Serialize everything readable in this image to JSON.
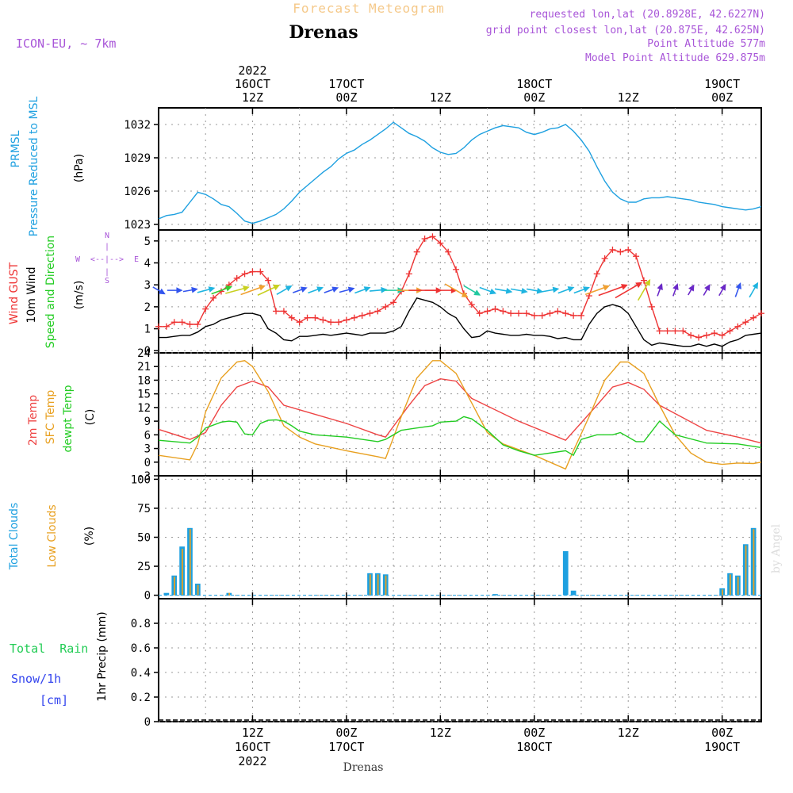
{
  "header": {
    "product_title": "Forecast Meteogram",
    "location": "Drenas",
    "model": "ICON-EU, ~ 7km",
    "requested": "requested lon,lat (20.8928E, 42.6227N)",
    "grid_point": "grid point closest lon,lat (20.875E, 42.625N)",
    "point_altitude": "Point Altitude 577m",
    "model_altitude": "Model Point Altitude 629.875m",
    "footer_location": "Drenas",
    "watermark": "by Angel"
  },
  "time_axis": {
    "start_hour": 0,
    "end_hour": 77,
    "unit": "hours from 16OCT 00Z 2022",
    "top_ticks": [
      {
        "hour": 12,
        "lines": [
          "2022",
          "16OCT",
          "12Z"
        ]
      },
      {
        "hour": 24,
        "lines": [
          "17OCT",
          "00Z"
        ]
      },
      {
        "hour": 36,
        "lines": [
          "12Z"
        ]
      },
      {
        "hour": 48,
        "lines": [
          "18OCT",
          "00Z"
        ]
      },
      {
        "hour": 60,
        "lines": [
          "12Z"
        ]
      },
      {
        "hour": 72,
        "lines": [
          "19OCT",
          "00Z"
        ]
      }
    ],
    "bottom_ticks": [
      {
        "hour": 12,
        "lines": [
          "12Z",
          "16OCT",
          "2022"
        ]
      },
      {
        "hour": 24,
        "lines": [
          "00Z",
          "17OCT"
        ]
      },
      {
        "hour": 36,
        "lines": [
          "12Z"
        ]
      },
      {
        "hour": 48,
        "lines": [
          "00Z",
          "18OCT"
        ]
      },
      {
        "hour": 60,
        "lines": [
          "12Z"
        ]
      },
      {
        "hour": 72,
        "lines": [
          "00Z",
          "19OCT"
        ]
      }
    ]
  },
  "colors": {
    "pressure": "#1ea0e0",
    "gust": "#ee3333",
    "wind": "#000000",
    "temp2m": "#ee4444",
    "sfc": "#e8a020",
    "dewpt": "#22cc22",
    "total_clouds": "#1ea0e0",
    "low_clouds": "#e8a020",
    "rain": "#22cc55",
    "snow": "#3344ee",
    "meta": "#a855d8",
    "title": "#f5c98a"
  },
  "panel_labels": {
    "pressure": {
      "l1": "PRMSL",
      "l2": "Pressure Reduced to MSL",
      "unit": "(hPa)"
    },
    "wind": {
      "l1": "Wind GUST",
      "l2": "10m Wind",
      "l3": "Speed and Direction",
      "unit": "(m/s)",
      "compass": {
        "n": "N",
        "s": "S",
        "w": "W",
        "e": "E",
        "ns_sym": "|",
        "ew_sym": "<--|-->"
      }
    },
    "temp": {
      "l1": "2m Temp",
      "l2": "SFC Temp",
      "l3": "dewpt Temp",
      "unit": "(C)"
    },
    "clouds": {
      "l1": "Total Clouds",
      "l2": "Low Clouds",
      "unit": "(%)"
    },
    "precip": {
      "rain": "Total  Rain",
      "snow": "Snow/1h",
      "snow_unit": "[cm]",
      "unit": "1hr Precip (mm)"
    }
  },
  "chart_data": [
    {
      "type": "line",
      "id": "pressure",
      "title": "PRMSL Pressure Reduced to MSL",
      "ylabel": "(hPa)",
      "ylim": [
        1022.5,
        1033.5
      ],
      "yticks": [
        1023,
        1026,
        1029,
        1032
      ],
      "series": [
        {
          "name": "PRMSL",
          "x": [
            0,
            1,
            2,
            3,
            4,
            5,
            6,
            7,
            8,
            9,
            10,
            11,
            12,
            13,
            14,
            15,
            16,
            17,
            18,
            19,
            20,
            21,
            22,
            23,
            24,
            25,
            26,
            27,
            28,
            29,
            30,
            31,
            32,
            33,
            34,
            35,
            36,
            37,
            38,
            39,
            40,
            41,
            42,
            43,
            44,
            45,
            46,
            47,
            48,
            49,
            50,
            51,
            52,
            53,
            54,
            55,
            56,
            57,
            58,
            59,
            60,
            61,
            62,
            63,
            64,
            65,
            66,
            67,
            68,
            69,
            70,
            71,
            72,
            73,
            74,
            75,
            76,
            77
          ],
          "values": [
            1023.5,
            1023.8,
            1023.9,
            1024.1,
            1025.0,
            1025.9,
            1025.7,
            1025.3,
            1024.8,
            1024.6,
            1024.0,
            1023.3,
            1023.1,
            1023.3,
            1023.6,
            1023.9,
            1024.4,
            1025.1,
            1025.9,
            1026.5,
            1027.1,
            1027.7,
            1028.2,
            1028.9,
            1029.4,
            1029.7,
            1030.2,
            1030.6,
            1031.1,
            1031.6,
            1032.2,
            1031.7,
            1031.2,
            1030.9,
            1030.5,
            1029.9,
            1029.5,
            1029.3,
            1029.4,
            1029.9,
            1030.6,
            1031.1,
            1031.4,
            1031.7,
            1031.9,
            1031.8,
            1031.7,
            1031.3,
            1031.1,
            1031.3,
            1031.6,
            1031.7,
            1032.0,
            1031.4,
            1030.6,
            1029.6,
            1028.2,
            1026.9,
            1025.9,
            1025.3,
            1025.0,
            1025.0,
            1025.3,
            1025.4,
            1025.4,
            1025.5,
            1025.4,
            1025.3,
            1025.2,
            1025.0,
            1024.9,
            1024.8,
            1024.6,
            1024.5,
            1024.4,
            1024.3,
            1024.4,
            1024.6
          ]
        }
      ]
    },
    {
      "type": "line",
      "id": "wind",
      "title": "Wind GUST / 10m Wind Speed and Direction",
      "ylabel": "(m/s)",
      "ylim": [
        -0.1,
        5.5
      ],
      "yticks": [
        0,
        1,
        2,
        3,
        4,
        5
      ],
      "series": [
        {
          "name": "Wind GUST",
          "x": [
            0,
            1,
            2,
            3,
            4,
            5,
            6,
            7,
            8,
            9,
            10,
            11,
            12,
            13,
            14,
            15,
            16,
            17,
            18,
            19,
            20,
            21,
            22,
            23,
            24,
            25,
            26,
            27,
            28,
            29,
            30,
            31,
            32,
            33,
            34,
            35,
            36,
            37,
            38,
            39,
            40,
            41,
            42,
            43,
            44,
            45,
            46,
            47,
            48,
            49,
            50,
            51,
            52,
            53,
            54,
            55,
            56,
            57,
            58,
            59,
            60,
            61,
            62,
            63,
            64,
            65,
            66,
            67,
            68,
            69,
            70,
            71,
            72,
            73,
            74,
            75,
            76,
            77
          ],
          "values": [
            1.1,
            1.1,
            1.3,
            1.3,
            1.2,
            1.2,
            1.9,
            2.4,
            2.7,
            3.0,
            3.3,
            3.5,
            3.6,
            3.6,
            3.2,
            1.8,
            1.8,
            1.5,
            1.3,
            1.5,
            1.5,
            1.4,
            1.3,
            1.3,
            1.4,
            1.5,
            1.6,
            1.7,
            1.8,
            2.0,
            2.2,
            2.7,
            3.5,
            4.5,
            5.1,
            5.2,
            4.9,
            4.5,
            3.7,
            2.6,
            2.1,
            1.7,
            1.8,
            1.9,
            1.8,
            1.7,
            1.7,
            1.7,
            1.6,
            1.6,
            1.7,
            1.8,
            1.7,
            1.6,
            1.6,
            2.5,
            3.5,
            4.2,
            4.6,
            4.5,
            4.6,
            4.3,
            3.2,
            2.0,
            0.9,
            0.9,
            0.9,
            0.9,
            0.7,
            0.6,
            0.7,
            0.8,
            0.7,
            0.9,
            1.1,
            1.3,
            1.5,
            1.7
          ]
        },
        {
          "name": "10m Wind",
          "x": [
            0,
            1,
            2,
            3,
            4,
            5,
            6,
            7,
            8,
            9,
            10,
            11,
            12,
            13,
            14,
            15,
            16,
            17,
            18,
            19,
            20,
            21,
            22,
            23,
            24,
            25,
            26,
            27,
            28,
            29,
            30,
            31,
            32,
            33,
            34,
            35,
            36,
            37,
            38,
            39,
            40,
            41,
            42,
            43,
            44,
            45,
            46,
            47,
            48,
            49,
            50,
            51,
            52,
            53,
            54,
            55,
            56,
            57,
            58,
            59,
            60,
            61,
            62,
            63,
            64,
            65,
            66,
            67,
            68,
            69,
            70,
            71,
            72,
            73,
            74,
            75,
            76,
            77
          ],
          "values": [
            0.6,
            0.6,
            0.65,
            0.7,
            0.7,
            0.85,
            1.1,
            1.2,
            1.4,
            1.5,
            1.6,
            1.7,
            1.7,
            1.6,
            1.0,
            0.8,
            0.5,
            0.45,
            0.65,
            0.65,
            0.7,
            0.75,
            0.7,
            0.75,
            0.8,
            0.75,
            0.7,
            0.8,
            0.8,
            0.8,
            0.9,
            1.1,
            1.8,
            2.4,
            2.3,
            2.2,
            2.0,
            1.7,
            1.5,
            1.0,
            0.6,
            0.65,
            0.9,
            0.8,
            0.75,
            0.7,
            0.7,
            0.75,
            0.7,
            0.7,
            0.65,
            0.55,
            0.6,
            0.5,
            0.5,
            1.2,
            1.7,
            2.0,
            2.1,
            2.0,
            1.7,
            1.1,
            0.5,
            0.25,
            0.35,
            0.3,
            0.25,
            0.2,
            0.2,
            0.3,
            0.2,
            0.3,
            0.2,
            0.4,
            0.5,
            0.7,
            0.75,
            0.8
          ]
        }
      ]
    },
    {
      "type": "line",
      "id": "temperature",
      "title": "2m Temp / SFC Temp / dewpt Temp",
      "ylabel": "(C)",
      "ylim": [
        -3,
        24
      ],
      "yticks": [
        -3,
        0,
        3,
        6,
        9,
        12,
        15,
        18,
        21,
        24
      ],
      "series": [
        {
          "name": "2m Temp",
          "x": [
            0,
            4,
            6,
            8,
            10,
            12,
            14,
            16,
            24,
            28,
            29,
            32,
            34,
            36,
            38,
            40,
            46,
            51,
            52,
            56,
            58,
            60,
            62,
            64,
            70,
            74,
            77
          ],
          "values": [
            7.2,
            5.0,
            6.5,
            12.5,
            16.5,
            17.8,
            16.5,
            12.5,
            8.5,
            6.0,
            5.5,
            12.5,
            16.8,
            18.3,
            17.8,
            14.0,
            9.0,
            5.5,
            4.8,
            12.5,
            16.5,
            17.5,
            16.0,
            12.5,
            7.0,
            5.5,
            4.2
          ]
        },
        {
          "name": "SFC Temp",
          "x": [
            0,
            4,
            5,
            6,
            8,
            10,
            11,
            12,
            14,
            16,
            18,
            20,
            24,
            28,
            29,
            31,
            33,
            35,
            36,
            38,
            40,
            42,
            44,
            48,
            52,
            53,
            55,
            57,
            59,
            60,
            62,
            64,
            66,
            68,
            70,
            72,
            74,
            76,
            77
          ],
          "values": [
            1.5,
            0.5,
            4.0,
            11.0,
            18.5,
            22.0,
            22.3,
            21.0,
            15.5,
            8.0,
            5.5,
            4.0,
            2.5,
            1.2,
            0.8,
            10.0,
            18.5,
            22.3,
            22.3,
            19.5,
            13.0,
            6.5,
            4.0,
            1.5,
            -1.5,
            2.5,
            10.0,
            18.0,
            22.0,
            22.0,
            19.5,
            12.5,
            6.0,
            2.0,
            0.0,
            -0.5,
            -0.2,
            -0.3,
            0.0
          ]
        },
        {
          "name": "dewpt Temp",
          "x": [
            0,
            4,
            5,
            6,
            8,
            9,
            10,
            11,
            12,
            13,
            14,
            15,
            16,
            17,
            18,
            20,
            24,
            28,
            29,
            31,
            33,
            35,
            36,
            38,
            39,
            40,
            42,
            44,
            46,
            48,
            52,
            53,
            54,
            56,
            58,
            59,
            60,
            61,
            62,
            64,
            66,
            70,
            74,
            77
          ],
          "values": [
            4.8,
            4.2,
            5.5,
            7.5,
            8.8,
            9.0,
            8.8,
            6.2,
            6.0,
            8.5,
            9.2,
            9.3,
            9.0,
            8.0,
            6.8,
            6.0,
            5.5,
            4.5,
            5.0,
            7.0,
            7.5,
            8.0,
            8.8,
            9.0,
            10.0,
            9.5,
            7.0,
            3.8,
            2.5,
            1.5,
            2.5,
            1.5,
            5.0,
            6.0,
            6.0,
            6.5,
            5.5,
            4.5,
            4.5,
            9.0,
            6.0,
            4.2,
            4.0,
            3.2
          ]
        }
      ]
    },
    {
      "type": "bar",
      "id": "clouds",
      "title": "Total Clouds / Low Clouds",
      "ylabel": "(%)",
      "ylim": [
        -3,
        103
      ],
      "yticks": [
        0,
        25,
        50,
        75,
        100
      ],
      "series": [
        {
          "name": "Total Clouds",
          "x": [
            1,
            2,
            3,
            4,
            5,
            6,
            9,
            27,
            28,
            29,
            43,
            52,
            53,
            72,
            73,
            74,
            75,
            76
          ],
          "values": [
            2,
            17,
            42,
            58,
            10,
            0,
            2,
            19,
            19,
            18,
            1,
            38,
            4,
            6,
            19,
            17,
            44,
            58
          ]
        },
        {
          "name": "Low Clouds",
          "x": [
            1,
            2,
            3,
            4,
            5,
            6,
            9,
            27,
            28,
            29,
            43,
            52,
            53,
            72,
            73,
            74,
            75,
            76
          ],
          "values": [
            0,
            16,
            40,
            57,
            9,
            0,
            2,
            18,
            18,
            17,
            0,
            0,
            0,
            5,
            18,
            16,
            43,
            57
          ]
        }
      ]
    },
    {
      "type": "bar",
      "id": "precip",
      "title": "1hr Precip",
      "ylabel": "1hr Precip (mm)",
      "ylim": [
        0,
        1.0
      ],
      "yticks": [
        0,
        0.2,
        0.4,
        0.6,
        0.8
      ],
      "series": [
        {
          "name": "Total Rain",
          "x": [],
          "values": []
        },
        {
          "name": "Snow/1h",
          "x": [],
          "values": []
        }
      ]
    }
  ],
  "wind_arrows": {
    "x": [
      0,
      2,
      4,
      6,
      8,
      10,
      12,
      14,
      16,
      18,
      20,
      22,
      24,
      26,
      28,
      30,
      32,
      34,
      36,
      38,
      40,
      42,
      44,
      46,
      48,
      50,
      52,
      54,
      56,
      58,
      60,
      62,
      64,
      66,
      68,
      70,
      72,
      74,
      76
    ],
    "dir_deg": [
      300,
      270,
      260,
      255,
      250,
      255,
      250,
      245,
      240,
      250,
      250,
      250,
      255,
      250,
      265,
      270,
      270,
      270,
      270,
      300,
      300,
      290,
      280,
      280,
      280,
      260,
      250,
      250,
      250,
      250,
      240,
      210,
      200,
      200,
      210,
      210,
      210,
      200,
      210
    ],
    "speed": [
      1.1,
      1.3,
      1.2,
      1.9,
      2.7,
      3.3,
      3.6,
      3.2,
      1.8,
      1.3,
      1.5,
      1.3,
      1.4,
      1.6,
      1.8,
      2.2,
      3.5,
      5.1,
      4.9,
      3.7,
      2.1,
      1.8,
      1.8,
      1.7,
      1.6,
      1.7,
      1.7,
      1.6,
      3.5,
      4.6,
      4.6,
      3.2,
      0.9,
      0.9,
      0.6,
      0.8,
      0.9,
      1.3,
      1.7
    ]
  }
}
